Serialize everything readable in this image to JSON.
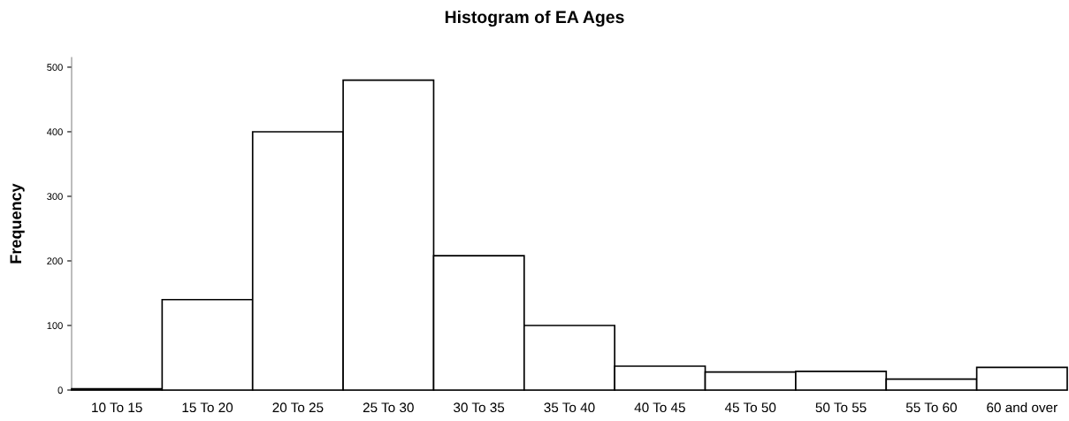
{
  "chart_data": {
    "type": "bar",
    "title": "Histogram of EA Ages",
    "ylabel": "Frequency",
    "categories": [
      "10 To 15",
      "15 To 20",
      "20 To 25",
      "25 To 30",
      "30 To 35",
      "35 To 40",
      "40 To 45",
      "45 To 50",
      "50 To 55",
      "55 To 60",
      "60 and over"
    ],
    "values": [
      2,
      140,
      400,
      480,
      208,
      100,
      37,
      28,
      29,
      17,
      35
    ],
    "color": "#ffffff",
    "ylim": [
      0,
      515
    ],
    "yticks": [
      0,
      100,
      200,
      300,
      400,
      500
    ],
    "grid": false
  }
}
